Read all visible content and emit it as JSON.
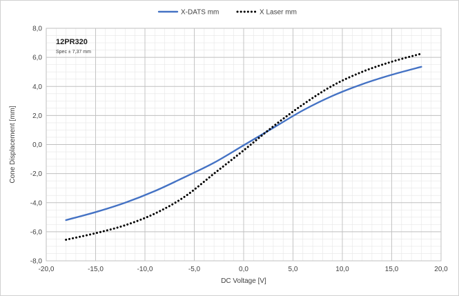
{
  "chart_data": {
    "type": "line",
    "title": "",
    "annotations": [
      "12PR320",
      "Spec ± 7,37 mm"
    ],
    "xlabel": "DC Voltage [V]",
    "ylabel": "Cone Displacement [mm]",
    "xlim": [
      -20,
      20
    ],
    "ylim": [
      -8,
      8
    ],
    "x_ticks": [
      -20,
      -15,
      -10,
      -5,
      0,
      5,
      10,
      15,
      20
    ],
    "x_tick_labels": [
      "-20,0",
      "-15,0",
      "-10,0",
      "-5,0",
      "0,0",
      "5,0",
      "10,0",
      "15,0",
      "20,0"
    ],
    "y_ticks": [
      -8,
      -6,
      -4,
      -2,
      0,
      2,
      4,
      6,
      8
    ],
    "y_tick_labels": [
      "-8,0",
      "-6,0",
      "-4,0",
      "-2,0",
      "0,0",
      "2,0",
      "4,0",
      "6,0",
      "8,0"
    ],
    "grid": true,
    "minor_grid": true,
    "legend_position": "top",
    "series": [
      {
        "name": "X-DATS mm",
        "color": "#4472c4",
        "style": "solid",
        "x": [
          -18,
          -15,
          -12,
          -9,
          -6,
          -3,
          0,
          3,
          6,
          9,
          12,
          15,
          18
        ],
        "y": [
          -5.2,
          -4.65,
          -4.0,
          -3.2,
          -2.25,
          -1.25,
          -0.05,
          1.15,
          2.35,
          3.35,
          4.15,
          4.8,
          5.35
        ]
      },
      {
        "name": "X Laser mm",
        "color": "#000000",
        "style": "dotted",
        "x": [
          -18,
          -15,
          -12,
          -9,
          -6,
          -3,
          0,
          3,
          6,
          9,
          12,
          15,
          18
        ],
        "y": [
          -6.55,
          -6.1,
          -5.55,
          -4.75,
          -3.6,
          -2.0,
          -0.4,
          1.25,
          2.75,
          4.05,
          5.0,
          5.7,
          6.25
        ]
      }
    ]
  }
}
